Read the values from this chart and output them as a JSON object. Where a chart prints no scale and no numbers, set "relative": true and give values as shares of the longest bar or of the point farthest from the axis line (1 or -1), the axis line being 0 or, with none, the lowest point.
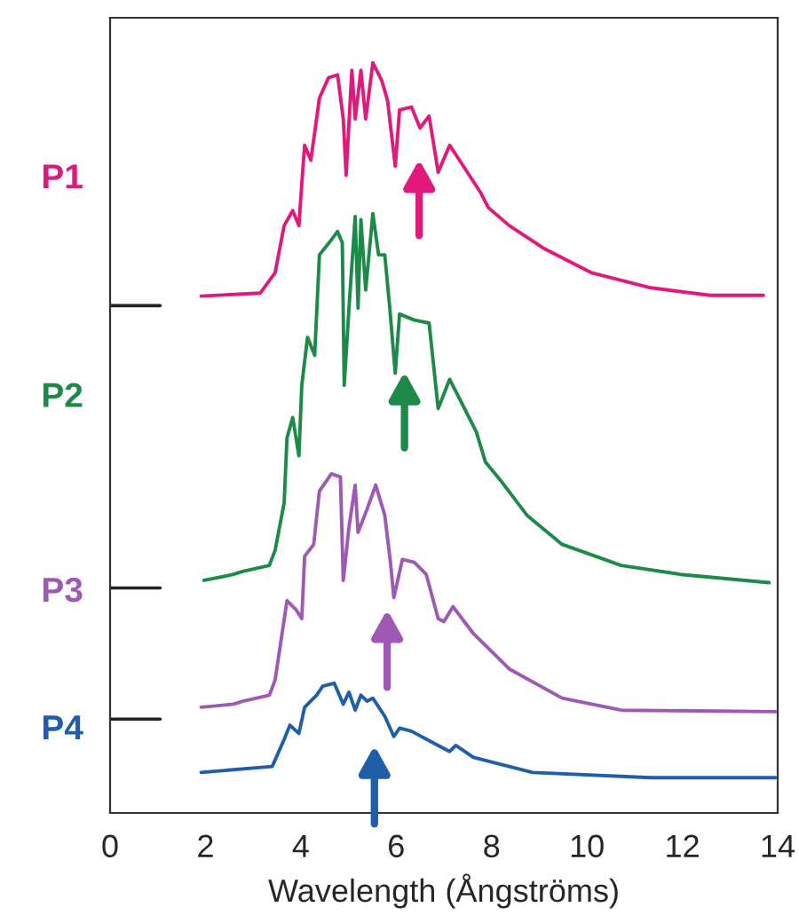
{
  "chart_data": {
    "type": "line",
    "relative": true,
    "xlabel": "Wavelength (Ångströms)",
    "xlim": [
      0,
      14
    ],
    "xticks": [
      0,
      2,
      4,
      6,
      8,
      10,
      12,
      14
    ],
    "grid": false,
    "legend": false,
    "marker": "none",
    "line_style": "solid",
    "series": [
      {
        "name": "P1",
        "color": "#e2197c",
        "x": [
          1.91,
          3.15,
          3.46,
          3.65,
          3.83,
          3.96,
          4.02,
          4.08,
          4.21,
          4.39,
          4.58,
          4.77,
          4.89,
          4.95,
          5.07,
          5.14,
          5.26,
          5.36,
          5.51,
          5.7,
          5.82,
          5.98,
          6.07,
          6.32,
          6.5,
          6.69,
          6.88,
          7.12,
          7.37,
          7.77,
          7.93,
          8.37,
          9.11,
          10.1,
          11.34,
          12.58,
          13.7
        ],
        "values": [
          0.689,
          0.693,
          0.72,
          0.783,
          0.803,
          0.783,
          0.839,
          0.89,
          0.87,
          0.953,
          0.98,
          0.984,
          0.925,
          0.85,
          0.99,
          0.925,
          0.99,
          0.925,
          1.0,
          0.976,
          0.949,
          0.862,
          0.937,
          0.941,
          0.913,
          0.929,
          0.854,
          0.89,
          0.866,
          0.827,
          0.807,
          0.783,
          0.752,
          0.72,
          0.7,
          0.69,
          0.69
        ]
      },
      {
        "name": "P2",
        "color": "#1e8a4a",
        "x": [
          1.97,
          2.59,
          2.78,
          3.34,
          3.46,
          3.65,
          3.71,
          3.83,
          3.96,
          4.02,
          4.14,
          4.29,
          4.39,
          4.64,
          4.77,
          4.87,
          4.91,
          5.01,
          5.14,
          5.2,
          5.26,
          5.36,
          5.51,
          5.63,
          5.76,
          5.86,
          5.98,
          6.07,
          6.38,
          6.69,
          6.88,
          7.12,
          7.37,
          7.68,
          7.87,
          8.18,
          8.74,
          9.48,
          10.72,
          11.96,
          13.82
        ],
        "values": [
          0.31,
          0.318,
          0.322,
          0.33,
          0.35,
          0.413,
          0.5,
          0.527,
          0.476,
          0.57,
          0.634,
          0.61,
          0.744,
          0.764,
          0.775,
          0.76,
          0.57,
          0.673,
          0.795,
          0.673,
          0.791,
          0.697,
          0.799,
          0.744,
          0.744,
          0.677,
          0.586,
          0.665,
          0.657,
          0.653,
          0.539,
          0.578,
          0.547,
          0.508,
          0.468,
          0.444,
          0.397,
          0.358,
          0.33,
          0.318,
          0.307
        ]
      },
      {
        "name": "P3",
        "color": "#9d59b3",
        "x": [
          1.91,
          2.59,
          2.78,
          3.34,
          3.46,
          3.59,
          3.71,
          3.9,
          4.02,
          4.08,
          4.27,
          4.39,
          4.64,
          4.83,
          4.89,
          5.01,
          5.14,
          5.2,
          5.39,
          5.57,
          5.76,
          5.88,
          5.95,
          6.13,
          6.38,
          6.63,
          6.88,
          7.0,
          7.19,
          7.62,
          8.37,
          9.48,
          10.72,
          13.95
        ],
        "values": [
          0.141,
          0.145,
          0.149,
          0.157,
          0.177,
          0.232,
          0.283,
          0.271,
          0.259,
          0.342,
          0.358,
          0.429,
          0.452,
          0.448,
          0.31,
          0.381,
          0.437,
          0.374,
          0.405,
          0.437,
          0.397,
          0.334,
          0.287,
          0.338,
          0.334,
          0.318,
          0.259,
          0.255,
          0.275,
          0.239,
          0.192,
          0.153,
          0.137,
          0.135
        ]
      },
      {
        "name": "P4",
        "color": "#1f5ea8",
        "x": [
          1.91,
          3.4,
          3.65,
          3.77,
          3.96,
          4.08,
          4.33,
          4.46,
          4.7,
          4.89,
          5.01,
          5.14,
          5.26,
          5.39,
          5.51,
          5.76,
          5.95,
          6.07,
          6.32,
          6.88,
          7.12,
          7.25,
          7.62,
          8.86,
          11.34,
          13.95
        ],
        "values": [
          0.054,
          0.062,
          0.098,
          0.117,
          0.106,
          0.141,
          0.157,
          0.169,
          0.173,
          0.145,
          0.161,
          0.137,
          0.157,
          0.149,
          0.153,
          0.129,
          0.102,
          0.113,
          0.109,
          0.09,
          0.082,
          0.09,
          0.074,
          0.054,
          0.047,
          0.047
        ]
      }
    ]
  }
}
